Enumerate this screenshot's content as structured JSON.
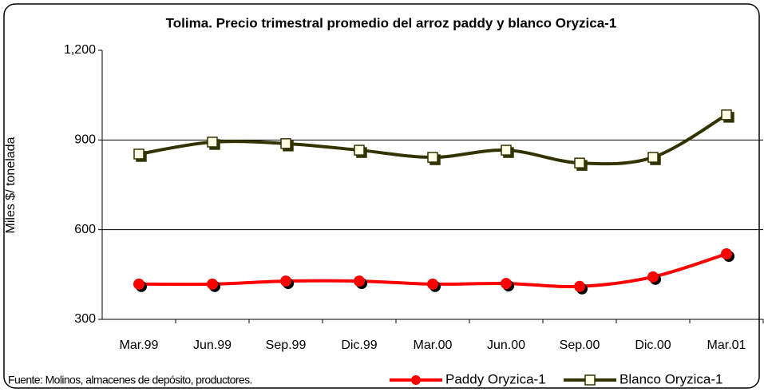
{
  "chart_data": {
    "type": "line",
    "title": "Tolima. Precio trimestral promedio del arroz paddy y blanco Oryzica-1",
    "y_label": "Miles $/ tonelada",
    "source": "Fuente: Molinos, almacenes de depósito, productores.",
    "categories": [
      "Mar.99",
      "Jun.99",
      "Sep.99",
      "Dic.99",
      "Mar.00",
      "Jun.00",
      "Sep.00",
      "Dic.00",
      "Mar.01"
    ],
    "series": [
      {
        "name": "Paddy Oryzica-1",
        "color": "#ff0000",
        "marker": "circle",
        "values": [
          418,
          418,
          428,
          428,
          418,
          420,
          410,
          442,
          519
        ]
      },
      {
        "name": "Blanco Oryzica-1",
        "color": "#333300",
        "marker": "square",
        "values": [
          853,
          893,
          888,
          866,
          842,
          866,
          823,
          842,
          984
        ]
      }
    ],
    "ylim": [
      300,
      1200
    ],
    "yticks": [
      300,
      600,
      900,
      {
        "value": 1200,
        "label": "1,200"
      }
    ],
    "grid": true,
    "legend": "bottom-right"
  }
}
